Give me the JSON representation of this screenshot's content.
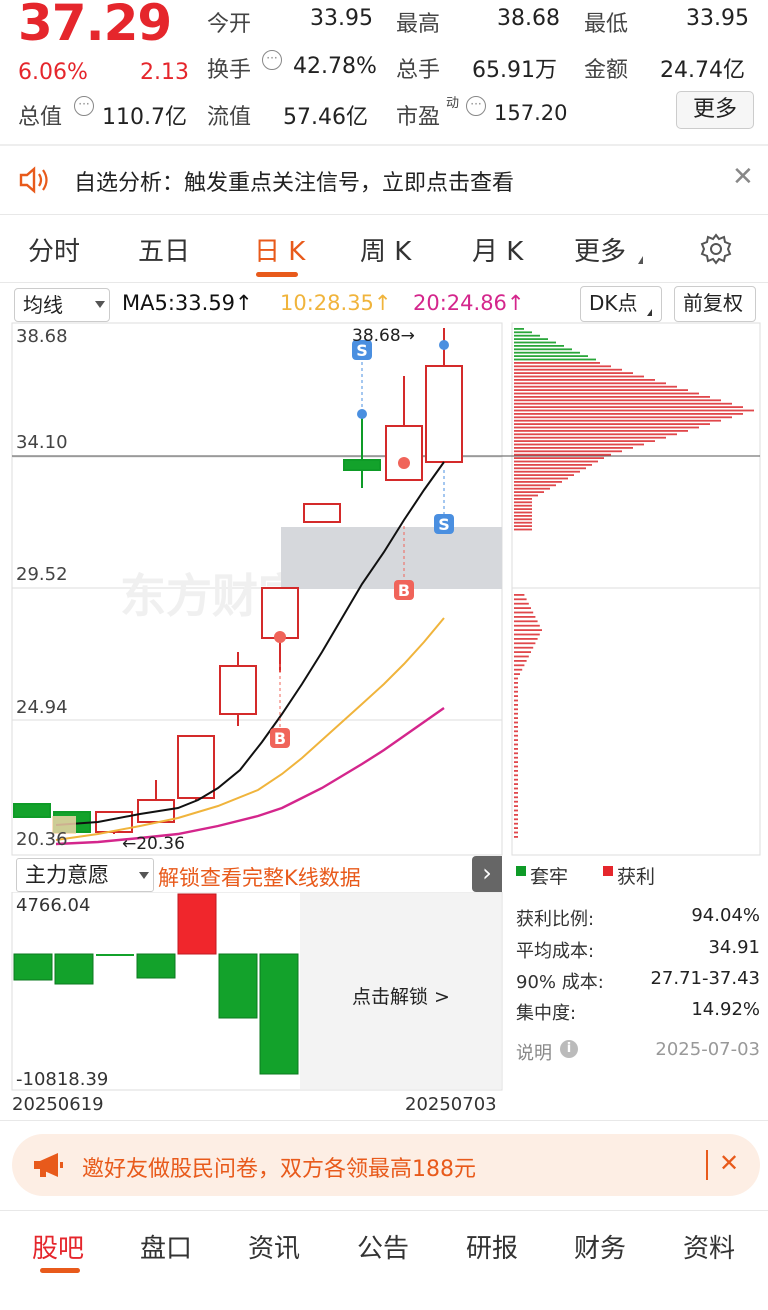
{
  "quote": {
    "price": "37.29",
    "pct": "6.06%",
    "change": "2.13",
    "open_label": "今开",
    "open": "33.95",
    "high_label": "最高",
    "high": "38.68",
    "low_label": "最低",
    "low": "33.95",
    "turnover_label": "换手",
    "turnover": "42.78%",
    "volume_label": "总手",
    "volume": "65.91万",
    "amount_label": "金额",
    "amount": "24.74亿",
    "mcap_label": "总值",
    "mcap": "110.7亿",
    "float_label": "流值",
    "float": "57.46亿",
    "pe_label": "市盈",
    "pe_sup": "动",
    "pe": "157.20",
    "more": "更多"
  },
  "notice": {
    "text": "自选分析：触发重点关注信号，立即点击查看"
  },
  "tabs": [
    "分时",
    "五日",
    "日 K",
    "周 K",
    "月 K",
    "更多"
  ],
  "controls": {
    "ma_select": "均线",
    "ma5": "MA5:33.59↑",
    "ma10": "10:28.35↑",
    "ma20": "20:24.86↑",
    "dk": "DK点",
    "adjust": "前复权"
  },
  "kchart": {
    "y_labels": [
      "38.68",
      "34.10",
      "29.52",
      "24.94",
      "20.36"
    ],
    "max_label": "38.68→",
    "min_label": "←20.36",
    "watermark": "东方财富"
  },
  "sub": {
    "select": "主力意愿",
    "unlock_text": "解锁查看完整K线数据",
    "top": "4766.04",
    "bottom": "-10818.39",
    "date_start": "20250619",
    "date_end": "20250703",
    "unlock_btn": "点击解锁 >"
  },
  "chip": {
    "legend_trap": "套牢",
    "legend_profit": "获利",
    "rows": [
      {
        "label": "获利比例:",
        "value": "94.04%"
      },
      {
        "label": "平均成本:",
        "value": "34.91"
      },
      {
        "label": "90% 成本:",
        "value": "27.71-37.43"
      },
      {
        "label": "集中度:",
        "value": "14.92%"
      }
    ],
    "note": "说明",
    "date": "2025-07-03"
  },
  "banner": {
    "text": "邀好友做股民问卷，双方各领最高188元"
  },
  "bottom_tabs": [
    "股吧",
    "盘口",
    "资讯",
    "公告",
    "研报",
    "财务",
    "资料"
  ],
  "colors": {
    "up": "#e5262c",
    "down": "#0e9b27",
    "accent": "#e85a1b",
    "ma5": "#111111",
    "ma10": "#f0b43c",
    "ma20": "#d4268c"
  }
}
